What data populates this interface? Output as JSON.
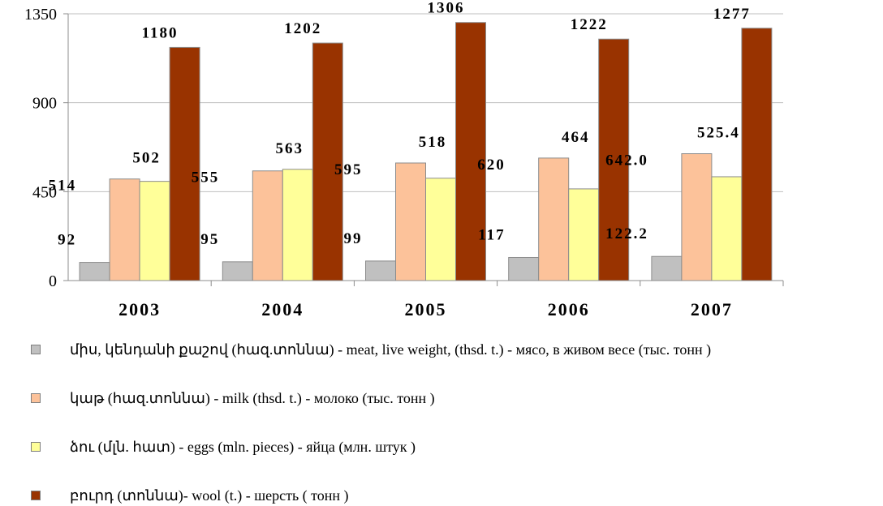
{
  "chart_data": {
    "type": "bar",
    "categories": [
      "2003",
      "2004",
      "2005",
      "2006",
      "2007"
    ],
    "ylim": [
      0,
      1350
    ],
    "yticks": [
      0,
      450,
      900,
      1350
    ],
    "grid": true,
    "legend_position": "bottom",
    "series": [
      {
        "name": "միս, կենդանի քաշով (հազ.տոննա) - meat, live weight, (thsd. t.) - мясо, в живом весе (тыс. тонн )",
        "values": [
          92,
          95,
          99,
          117,
          122.2
        ],
        "labels": [
          "92",
          "95",
          "99",
          "117",
          "122.2"
        ],
        "color": "#c0c0c0"
      },
      {
        "name": "կաթ (հազ.տոննա) - milk (thsd. t.) - молоко (тыс. тонн )",
        "values": [
          514,
          555,
          595,
          620,
          642.0
        ],
        "labels": [
          "514",
          "555",
          "595",
          "620",
          "642.0"
        ],
        "color": "#fcc29a"
      },
      {
        "name": "ձու (մլն. հատ) - eggs (mln. pieces) - яйца (млн. штук )",
        "values": [
          502,
          563,
          518,
          464,
          525.4
        ],
        "labels": [
          "502",
          "563",
          "518",
          "464",
          "525.4"
        ],
        "color": "#ffff99"
      },
      {
        "name": "բուրդ (տոննա)- wool (t.) - шерсть ( тонн )",
        "values": [
          1180,
          1202,
          1306,
          1222,
          1277
        ],
        "labels": [
          "1180",
          "1202",
          "1306",
          "1222",
          "1277"
        ],
        "color": "#993300"
      }
    ]
  }
}
